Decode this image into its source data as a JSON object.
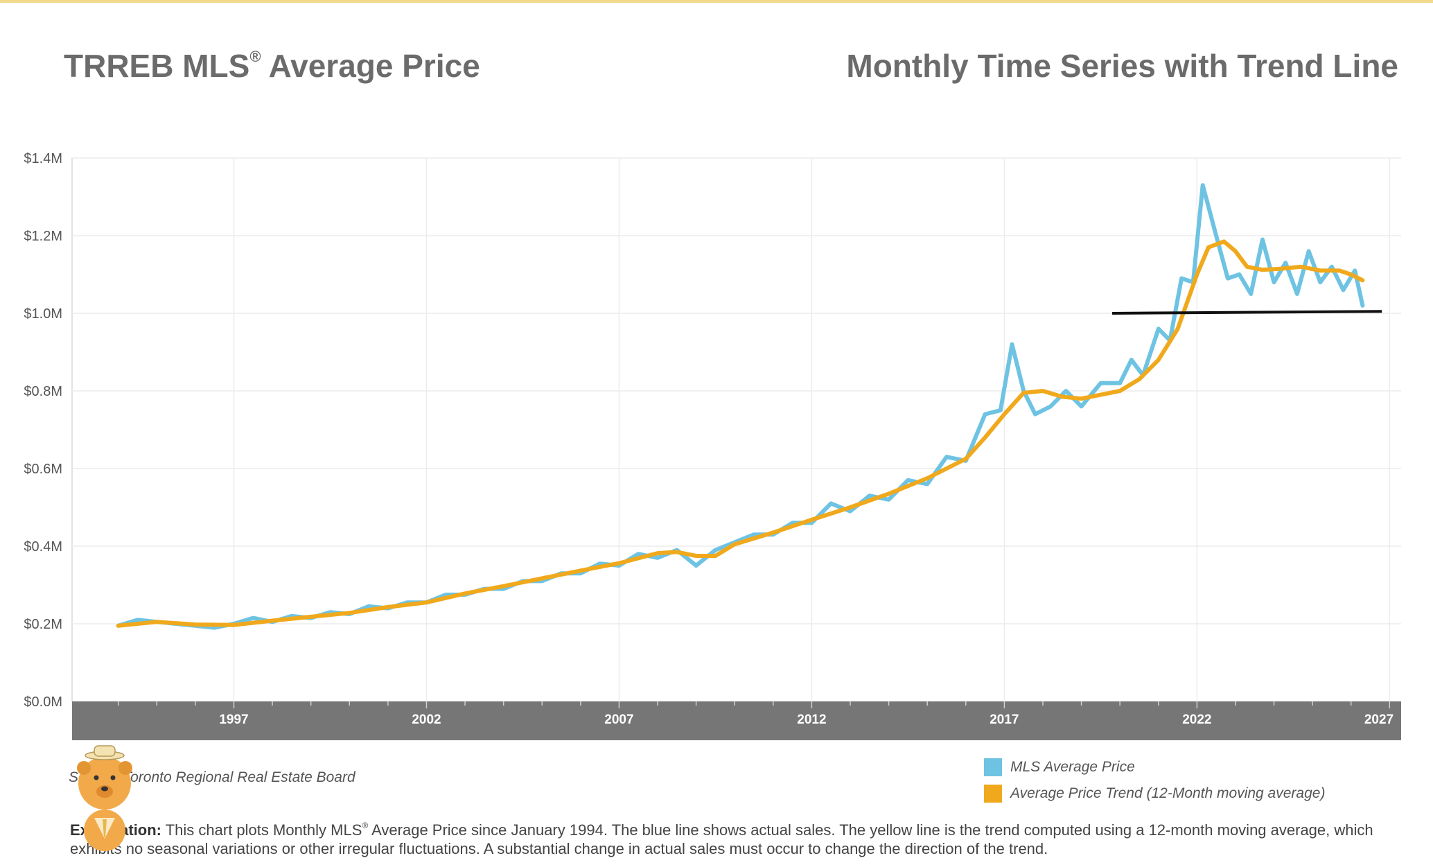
{
  "header": {
    "title_left_main": "TRREB MLS",
    "title_left_reg": "®",
    "title_left_rest": " Average Price",
    "title_right": "Monthly Time Series with Trend Line"
  },
  "source": "Source: Toronto Regional Real Estate Board",
  "explanation": {
    "label": "Explanation:",
    "text_before": " This chart plots Monthly MLS",
    "reg": "®",
    "text_after": " Average Price since January 1994. The blue line shows actual sales. The yellow line is the trend computed using a 12-month moving average, which exhibits no seasonal variations or other irregular fluctuations. A substantial change in actual sales must occur to change the direction of the trend."
  },
  "legend": {
    "items": [
      {
        "label": "MLS Average Price",
        "color": "#6ec3e3"
      },
      {
        "label": "Average Price Trend (12-Month moving average)",
        "color": "#f0a91c"
      }
    ]
  },
  "chart_data": {
    "type": "line",
    "xlim": [
      1992.8,
      2027.3
    ],
    "ylim": [
      0,
      1.4
    ],
    "x_ticks": [
      1997,
      2002,
      2007,
      2012,
      2017,
      2022,
      2027
    ],
    "y_ticks": [
      0,
      0.2,
      0.4,
      0.6,
      0.8,
      1.0,
      1.2,
      1.4
    ],
    "y_tick_labels": [
      "$0.0M",
      "$0.2M",
      "$0.4M",
      "$0.6M",
      "$0.8M",
      "$1.0M",
      "$1.2M",
      "$1.4M"
    ],
    "grid": true,
    "legend_position": "bottom-right",
    "series": [
      {
        "name": "MLS Average Price",
        "color": "#6ec3e3",
        "points": [
          [
            1994.0,
            0.195
          ],
          [
            1994.5,
            0.21
          ],
          [
            1995.0,
            0.205
          ],
          [
            1995.5,
            0.2
          ],
          [
            1996.0,
            0.195
          ],
          [
            1996.5,
            0.19
          ],
          [
            1997.0,
            0.2
          ],
          [
            1997.5,
            0.215
          ],
          [
            1998.0,
            0.205
          ],
          [
            1998.5,
            0.22
          ],
          [
            1999.0,
            0.215
          ],
          [
            1999.5,
            0.23
          ],
          [
            2000.0,
            0.225
          ],
          [
            2000.5,
            0.245
          ],
          [
            2001.0,
            0.24
          ],
          [
            2001.5,
            0.255
          ],
          [
            2002.0,
            0.255
          ],
          [
            2002.5,
            0.275
          ],
          [
            2003.0,
            0.275
          ],
          [
            2003.5,
            0.29
          ],
          [
            2004.0,
            0.29
          ],
          [
            2004.5,
            0.31
          ],
          [
            2005.0,
            0.31
          ],
          [
            2005.5,
            0.33
          ],
          [
            2006.0,
            0.33
          ],
          [
            2006.5,
            0.355
          ],
          [
            2007.0,
            0.35
          ],
          [
            2007.5,
            0.38
          ],
          [
            2008.0,
            0.37
          ],
          [
            2008.5,
            0.39
          ],
          [
            2009.0,
            0.35
          ],
          [
            2009.5,
            0.39
          ],
          [
            2010.0,
            0.41
          ],
          [
            2010.5,
            0.43
          ],
          [
            2011.0,
            0.43
          ],
          [
            2011.5,
            0.46
          ],
          [
            2012.0,
            0.46
          ],
          [
            2012.5,
            0.51
          ],
          [
            2013.0,
            0.49
          ],
          [
            2013.5,
            0.53
          ],
          [
            2014.0,
            0.52
          ],
          [
            2014.5,
            0.57
          ],
          [
            2015.0,
            0.56
          ],
          [
            2015.5,
            0.63
          ],
          [
            2016.0,
            0.62
          ],
          [
            2016.5,
            0.74
          ],
          [
            2016.9,
            0.75
          ],
          [
            2017.2,
            0.92
          ],
          [
            2017.5,
            0.8
          ],
          [
            2017.8,
            0.74
          ],
          [
            2018.2,
            0.76
          ],
          [
            2018.6,
            0.8
          ],
          [
            2019.0,
            0.76
          ],
          [
            2019.5,
            0.82
          ],
          [
            2020.0,
            0.82
          ],
          [
            2020.3,
            0.88
          ],
          [
            2020.6,
            0.84
          ],
          [
            2021.0,
            0.96
          ],
          [
            2021.3,
            0.93
          ],
          [
            2021.6,
            1.09
          ],
          [
            2021.9,
            1.08
          ],
          [
            2022.15,
            1.33
          ],
          [
            2022.5,
            1.2
          ],
          [
            2022.8,
            1.09
          ],
          [
            2023.1,
            1.1
          ],
          [
            2023.4,
            1.05
          ],
          [
            2023.7,
            1.19
          ],
          [
            2024.0,
            1.08
          ],
          [
            2024.3,
            1.13
          ],
          [
            2024.6,
            1.05
          ],
          [
            2024.9,
            1.16
          ],
          [
            2025.2,
            1.08
          ],
          [
            2025.5,
            1.12
          ],
          [
            2025.8,
            1.06
          ],
          [
            2026.1,
            1.11
          ],
          [
            2026.3,
            1.02
          ]
        ]
      },
      {
        "name": "Average Price Trend (12-Month moving average)",
        "color": "#f0a91c",
        "points": [
          [
            1994.0,
            0.195
          ],
          [
            1995.0,
            0.205
          ],
          [
            1996.0,
            0.198
          ],
          [
            1997.0,
            0.197
          ],
          [
            1998.0,
            0.208
          ],
          [
            1999.0,
            0.218
          ],
          [
            2000.0,
            0.228
          ],
          [
            2001.0,
            0.243
          ],
          [
            2002.0,
            0.255
          ],
          [
            2003.0,
            0.278
          ],
          [
            2004.0,
            0.297
          ],
          [
            2005.0,
            0.317
          ],
          [
            2006.0,
            0.337
          ],
          [
            2007.0,
            0.356
          ],
          [
            2008.0,
            0.382
          ],
          [
            2008.5,
            0.385
          ],
          [
            2009.0,
            0.375
          ],
          [
            2009.5,
            0.375
          ],
          [
            2010.0,
            0.405
          ],
          [
            2011.0,
            0.435
          ],
          [
            2012.0,
            0.468
          ],
          [
            2013.0,
            0.5
          ],
          [
            2014.0,
            0.535
          ],
          [
            2015.0,
            0.575
          ],
          [
            2016.0,
            0.625
          ],
          [
            2016.5,
            0.68
          ],
          [
            2017.0,
            0.74
          ],
          [
            2017.5,
            0.795
          ],
          [
            2018.0,
            0.8
          ],
          [
            2018.5,
            0.785
          ],
          [
            2019.0,
            0.78
          ],
          [
            2019.5,
            0.79
          ],
          [
            2020.0,
            0.8
          ],
          [
            2020.5,
            0.83
          ],
          [
            2021.0,
            0.88
          ],
          [
            2021.5,
            0.96
          ],
          [
            2022.0,
            1.1
          ],
          [
            2022.3,
            1.17
          ],
          [
            2022.7,
            1.185
          ],
          [
            2023.0,
            1.16
          ],
          [
            2023.3,
            1.12
          ],
          [
            2023.7,
            1.112
          ],
          [
            2024.2,
            1.115
          ],
          [
            2024.7,
            1.12
          ],
          [
            2025.2,
            1.11
          ],
          [
            2025.7,
            1.11
          ],
          [
            2026.0,
            1.1
          ],
          [
            2026.3,
            1.085
          ]
        ]
      }
    ],
    "reference_line": {
      "from": [
        2019.8,
        1.0
      ],
      "to": [
        2026.8,
        1.005
      ],
      "color": "#111111"
    }
  }
}
